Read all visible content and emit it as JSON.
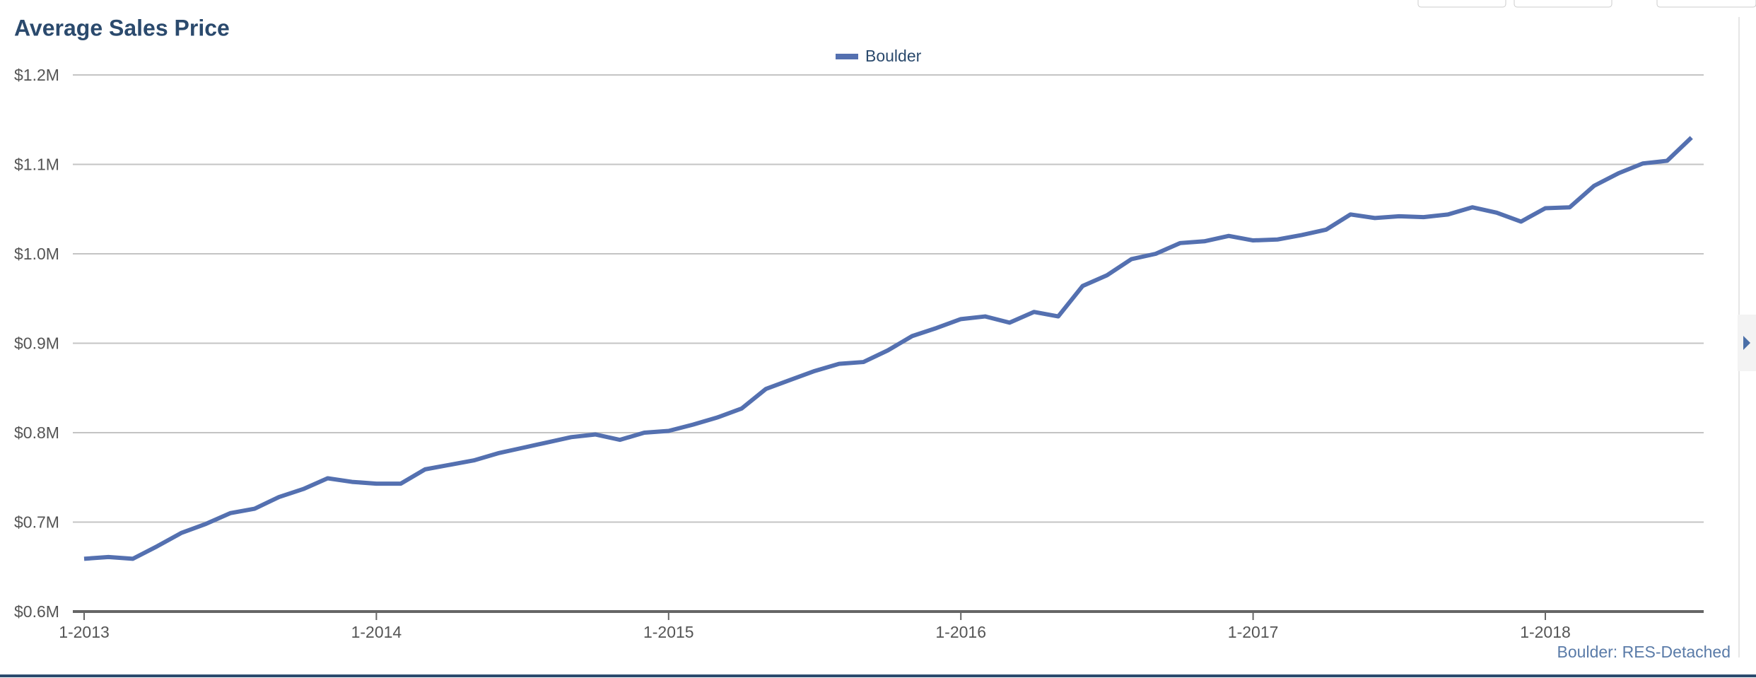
{
  "chart_data": {
    "type": "line",
    "title": "Average Sales Price",
    "footnote": "Boulder: RES-Detached",
    "x": [
      "1-2013",
      "2-2013",
      "3-2013",
      "4-2013",
      "5-2013",
      "6-2013",
      "7-2013",
      "8-2013",
      "9-2013",
      "10-2013",
      "11-2013",
      "12-2013",
      "1-2014",
      "2-2014",
      "3-2014",
      "4-2014",
      "5-2014",
      "6-2014",
      "7-2014",
      "8-2014",
      "9-2014",
      "10-2014",
      "11-2014",
      "12-2014",
      "1-2015",
      "2-2015",
      "3-2015",
      "4-2015",
      "5-2015",
      "6-2015",
      "7-2015",
      "8-2015",
      "9-2015",
      "10-2015",
      "11-2015",
      "12-2015",
      "1-2016",
      "2-2016",
      "3-2016",
      "4-2016",
      "5-2016",
      "6-2016",
      "7-2016",
      "8-2016",
      "9-2016",
      "10-2016",
      "11-2016",
      "12-2016",
      "1-2017",
      "2-2017",
      "3-2017",
      "4-2017",
      "5-2017",
      "6-2017",
      "7-2017",
      "8-2017",
      "9-2017",
      "10-2017",
      "11-2017",
      "12-2017",
      "1-2018",
      "2-2018",
      "3-2018",
      "4-2018",
      "5-2018",
      "6-2018",
      "7-2018"
    ],
    "series": [
      {
        "name": "Boulder",
        "color": "#5470b0",
        "values": [
          0.659,
          0.661,
          0.659,
          0.673,
          0.688,
          0.698,
          0.71,
          0.715,
          0.728,
          0.737,
          0.749,
          0.745,
          0.743,
          0.743,
          0.759,
          0.764,
          0.769,
          0.777,
          0.783,
          0.789,
          0.795,
          0.798,
          0.792,
          0.8,
          0.802,
          0.809,
          0.817,
          0.827,
          0.849,
          0.859,
          0.869,
          0.877,
          0.879,
          0.892,
          0.908,
          0.917,
          0.927,
          0.93,
          0.923,
          0.935,
          0.93,
          0.964,
          0.976,
          0.994,
          1.0,
          1.012,
          1.014,
          1.02,
          1.015,
          1.016,
          1.021,
          1.027,
          1.044,
          1.04,
          1.042,
          1.041,
          1.044,
          1.052,
          1.046,
          1.036,
          1.051,
          1.052,
          1.076,
          1.09,
          1.101,
          1.104,
          1.13
        ]
      }
    ],
    "xticks": [
      "1-2013",
      "1-2014",
      "1-2015",
      "1-2016",
      "1-2017",
      "1-2018"
    ],
    "ylim": [
      0.6,
      1.2
    ],
    "yticks": [
      {
        "value": 0.6,
        "label": "$0.6M"
      },
      {
        "value": 0.7,
        "label": "$0.7M"
      },
      {
        "value": 0.8,
        "label": "$0.8M"
      },
      {
        "value": 0.9,
        "label": "$0.9M"
      },
      {
        "value": 1.0,
        "label": "$1.0M"
      },
      {
        "value": 1.1,
        "label": "$1.1M"
      },
      {
        "value": 1.2,
        "label": "$1.2M"
      }
    ],
    "grid": true,
    "legend": "top"
  }
}
